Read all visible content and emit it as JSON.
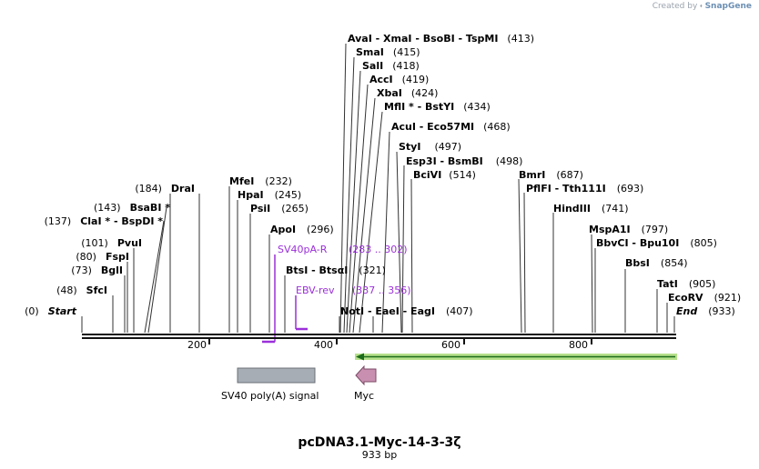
{
  "credit": {
    "prefix": "Created by",
    "brand": "SnapGene"
  },
  "plasmid": {
    "name": "pcDNA3.1-Myc-14-3-3ζ",
    "length_label": "933 bp"
  },
  "axis": {
    "ticks": [
      "200",
      "400",
      "600",
      "800"
    ]
  },
  "sites": {
    "ava_group": {
      "names": "AvaI  - XmaI  - BsoBI  - TspMI",
      "pos": "(413)"
    },
    "sma": {
      "name": "SmaI",
      "pos": "(415)"
    },
    "sal": {
      "name": "SalI",
      "pos": "(418)"
    },
    "acc": {
      "name": "AccI",
      "pos": "(419)"
    },
    "xba": {
      "name": "XbaI",
      "pos": "(424)"
    },
    "mfl_group": {
      "names": "MflI * - BstYI",
      "pos": "(434)"
    },
    "acu_group": {
      "names": "AcuI  - Eco57MI",
      "pos": "(468)"
    },
    "sty": {
      "name": "StyI",
      "pos": "(497)"
    },
    "esp_group": {
      "names": "Esp3I  - BsmBI",
      "pos": "(498)"
    },
    "bci": {
      "name": "BciVI",
      "pos": "(514)"
    },
    "bmr": {
      "name": "BmrI",
      "pos": "(687)"
    },
    "pfl_group": {
      "names": "PflFI  - Tth111I",
      "pos": "(693)"
    },
    "hind": {
      "name": "HindIII",
      "pos": "(741)"
    },
    "msp": {
      "name": "MspA1I",
      "pos": "(797)"
    },
    "bbv_group": {
      "names": "BbvCI  - Bpu10I",
      "pos": "(805)"
    },
    "bbs": {
      "name": "BbsI",
      "pos": "(854)"
    },
    "tat": {
      "name": "TatI",
      "pos": "(905)"
    },
    "eco": {
      "name": "EcoRV",
      "pos": "(921)"
    },
    "end": {
      "name": "End",
      "pos": "(933)"
    },
    "dra": {
      "name": "DraI",
      "pos": "(184)"
    },
    "bsab": {
      "name": "BsaBI *",
      "pos": "(143)"
    },
    "cla_group": {
      "names": "ClaI * - BspDI *",
      "pos": "(137)"
    },
    "pvu": {
      "name": "PvuI",
      "pos": "(101)"
    },
    "fsp": {
      "name": "FspI",
      "pos": "(80)"
    },
    "bgl": {
      "name": "BglI",
      "pos": "(73)"
    },
    "sfc": {
      "name": "SfcI",
      "pos": "(48)"
    },
    "start": {
      "name": "Start",
      "pos": "(0)"
    },
    "mfe": {
      "name": "MfeI",
      "pos": "(232)"
    },
    "hpa": {
      "name": "HpaI",
      "pos": "(245)"
    },
    "psi": {
      "name": "PsiI",
      "pos": "(265)"
    },
    "apo": {
      "name": "ApoI",
      "pos": "(296)"
    },
    "bts_group": {
      "names": "BtsI  - BtsαI",
      "pos": "(321)"
    },
    "not_group": {
      "names": "NotI  - EaeI  - EagI",
      "pos": "(407)"
    }
  },
  "primers": [
    {
      "name": "SV40pA-R",
      "range": "(283 .. 302)"
    },
    {
      "name": "EBV-rev",
      "range": "(337 .. 356)"
    }
  ],
  "features": [
    {
      "name": "SV40 poly(A) signal",
      "color": "#a7adb5"
    },
    {
      "name": "Myc",
      "color": "#c98fb0"
    }
  ],
  "colors": {
    "primer": "#9b30d9",
    "orf_fill": "#b5e08a",
    "orf_arrow": "#1b6b1b"
  }
}
